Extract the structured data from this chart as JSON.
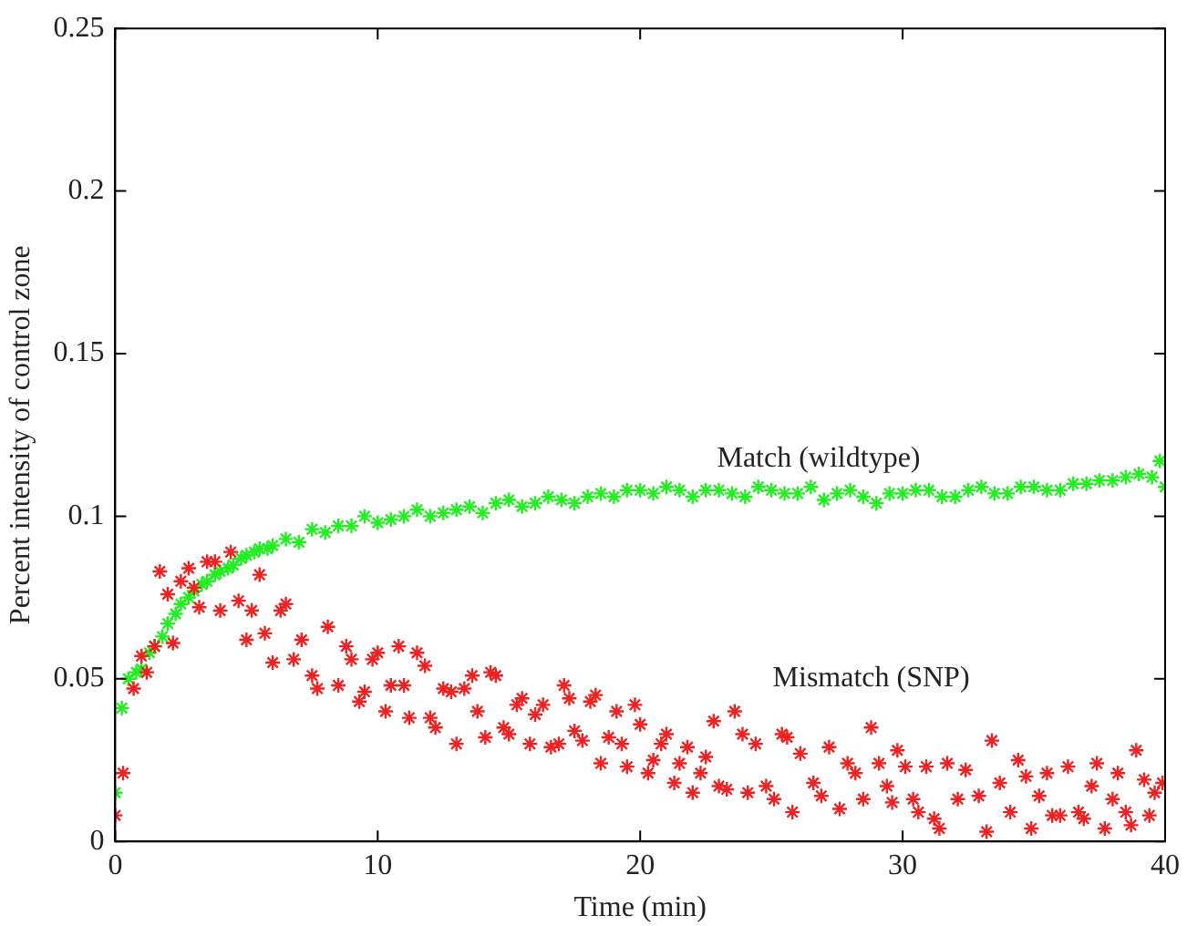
{
  "chart_data": {
    "type": "scatter",
    "xlabel": "Time (min)",
    "ylabel": "Percent intensity of control zone",
    "xlim": [
      0,
      40
    ],
    "xticks": [
      0,
      10,
      20,
      30,
      40
    ],
    "ylim": [
      0,
      0.25
    ],
    "yticks": [
      0,
      0.05,
      0.1,
      0.15,
      0.2,
      0.25
    ],
    "grid": false,
    "legend": false,
    "marker": "cross",
    "series": [
      {
        "name": "Match (wildtype)",
        "color": "#22ee22",
        "x": [
          0,
          0.25,
          0.5,
          0.8,
          1,
          1.3,
          1.5,
          1.8,
          2,
          2.3,
          2.5,
          2.8,
          3,
          3.3,
          3.5,
          3.8,
          4,
          4.3,
          4.5,
          4.8,
          5,
          5.3,
          5.5,
          5.8,
          6,
          6.5,
          7,
          7.5,
          8,
          8.5,
          9,
          9.5,
          10,
          10.5,
          11,
          11.5,
          12,
          12.5,
          13,
          13.5,
          14,
          14.5,
          15,
          15.5,
          16,
          16.5,
          17,
          17.5,
          18,
          18.5,
          19,
          19.5,
          20,
          20.5,
          21,
          21.5,
          22,
          22.5,
          23,
          23.5,
          24,
          24.5,
          25,
          25.5,
          26,
          26.5,
          27,
          27.5,
          28,
          28.5,
          29,
          29.5,
          30,
          30.5,
          31,
          31.5,
          32,
          32.5,
          33,
          33.5,
          34,
          34.5,
          35,
          35.5,
          36,
          36.5,
          37,
          37.5,
          38,
          38.5,
          39,
          39.5,
          39.8,
          40
        ],
        "values": [
          0.015,
          0.041,
          0.05,
          0.052,
          0.053,
          0.058,
          0.06,
          0.063,
          0.067,
          0.07,
          0.073,
          0.075,
          0.077,
          0.079,
          0.08,
          0.082,
          0.083,
          0.084,
          0.085,
          0.087,
          0.088,
          0.089,
          0.09,
          0.09,
          0.091,
          0.093,
          0.092,
          0.096,
          0.095,
          0.097,
          0.097,
          0.1,
          0.098,
          0.099,
          0.1,
          0.102,
          0.1,
          0.101,
          0.102,
          0.103,
          0.101,
          0.104,
          0.105,
          0.103,
          0.104,
          0.106,
          0.105,
          0.104,
          0.106,
          0.107,
          0.106,
          0.108,
          0.108,
          0.107,
          0.109,
          0.108,
          0.106,
          0.108,
          0.108,
          0.107,
          0.106,
          0.109,
          0.108,
          0.107,
          0.107,
          0.109,
          0.105,
          0.107,
          0.108,
          0.106,
          0.104,
          0.107,
          0.107,
          0.108,
          0.108,
          0.106,
          0.106,
          0.108,
          0.109,
          0.107,
          0.107,
          0.109,
          0.109,
          0.108,
          0.108,
          0.11,
          0.11,
          0.111,
          0.111,
          0.112,
          0.113,
          0.112,
          0.117,
          0.109
        ]
      },
      {
        "name": "Mismatch (SNP)",
        "color": "#ee2222",
        "x": [
          0,
          0.3,
          0.7,
          1,
          1.2,
          1.5,
          1.7,
          2,
          2.2,
          2.5,
          2.8,
          3,
          3.2,
          3.5,
          3.8,
          4,
          4.4,
          4.7,
          5,
          5.2,
          5.5,
          5.7,
          6,
          6.3,
          6.5,
          6.8,
          7.1,
          7.5,
          7.7,
          8.1,
          8.5,
          8.8,
          9,
          9.3,
          9.5,
          9.8,
          10,
          10.3,
          10.5,
          10.8,
          11,
          11.2,
          11.5,
          11.8,
          12,
          12.2,
          12.5,
          12.8,
          13,
          13.3,
          13.6,
          13.8,
          14.1,
          14.3,
          14.5,
          14.8,
          15,
          15.3,
          15.5,
          15.8,
          16,
          16.3,
          16.6,
          16.9,
          17.1,
          17.3,
          17.5,
          17.8,
          18.1,
          18.3,
          18.5,
          18.8,
          19.1,
          19.3,
          19.5,
          19.8,
          20,
          20.3,
          20.5,
          20.8,
          21,
          21.3,
          21.5,
          21.8,
          22,
          22.3,
          22.5,
          22.8,
          23,
          23.3,
          23.6,
          23.9,
          24.1,
          24.4,
          24.8,
          25.1,
          25.4,
          25.6,
          25.8,
          26.1,
          26.6,
          26.9,
          27.2,
          27.6,
          27.9,
          28.2,
          28.5,
          28.8,
          29.1,
          29.4,
          29.6,
          29.8,
          30.1,
          30.4,
          30.6,
          30.9,
          31.2,
          31.4,
          31.7,
          32.1,
          32.4,
          32.9,
          33.2,
          33.4,
          33.7,
          34.1,
          34.4,
          34.7,
          34.9,
          35.2,
          35.5,
          35.7,
          36,
          36.3,
          36.7,
          36.9,
          37.2,
          37.4,
          37.7,
          38,
          38.2,
          38.5,
          38.7,
          38.9,
          39.2,
          39.4,
          39.6,
          39.9
        ],
        "values": [
          0.008,
          0.021,
          0.047,
          0.057,
          0.052,
          0.06,
          0.083,
          0.076,
          0.061,
          0.08,
          0.084,
          0.078,
          0.072,
          0.086,
          0.086,
          0.071,
          0.089,
          0.074,
          0.062,
          0.071,
          0.082,
          0.064,
          0.055,
          0.071,
          0.073,
          0.056,
          0.062,
          0.051,
          0.047,
          0.066,
          0.048,
          0.06,
          0.056,
          0.043,
          0.046,
          0.056,
          0.058,
          0.04,
          0.048,
          0.06,
          0.048,
          0.038,
          0.058,
          0.054,
          0.038,
          0.035,
          0.047,
          0.046,
          0.03,
          0.047,
          0.051,
          0.04,
          0.032,
          0.052,
          0.051,
          0.035,
          0.033,
          0.042,
          0.044,
          0.03,
          0.039,
          0.042,
          0.029,
          0.03,
          0.048,
          0.044,
          0.034,
          0.031,
          0.043,
          0.045,
          0.024,
          0.032,
          0.04,
          0.03,
          0.023,
          0.042,
          0.036,
          0.021,
          0.025,
          0.03,
          0.033,
          0.018,
          0.024,
          0.029,
          0.015,
          0.021,
          0.026,
          0.037,
          0.017,
          0.016,
          0.04,
          0.033,
          0.015,
          0.03,
          0.017,
          0.013,
          0.033,
          0.032,
          0.009,
          0.027,
          0.018,
          0.014,
          0.029,
          0.01,
          0.024,
          0.021,
          0.013,
          0.035,
          0.024,
          0.017,
          0.012,
          0.028,
          0.023,
          0.013,
          0.009,
          0.023,
          0.007,
          0.004,
          0.024,
          0.013,
          0.022,
          0.014,
          0.003,
          0.031,
          0.018,
          0.009,
          0.025,
          0.02,
          0.004,
          0.014,
          0.021,
          0.008,
          0.008,
          0.023,
          0.009,
          0.007,
          0.017,
          0.024,
          0.004,
          0.013,
          0.021,
          0.009,
          0.005,
          0.028,
          0.019,
          0.008,
          0.015,
          0.018
        ]
      }
    ]
  }
}
